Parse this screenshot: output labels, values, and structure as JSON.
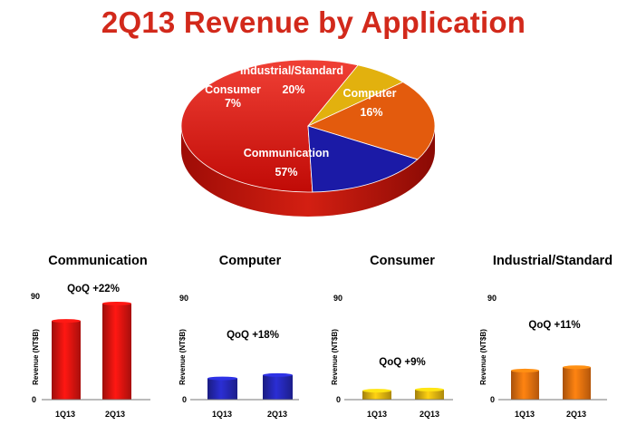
{
  "title": "2Q13 Revenue by Application",
  "chart_data": [
    {
      "type": "pie",
      "title": "2Q13 Revenue by Application",
      "categories": [
        "Communication",
        "Computer",
        "Industrial/Standard",
        "Consumer"
      ],
      "values": [
        57,
        16,
        20,
        7
      ],
      "value_labels": [
        "57%",
        "16%",
        "20%",
        "7%"
      ],
      "colors": [
        "#d8170f",
        "#1b1aa6",
        "#e35b0d",
        "#e2b10e"
      ],
      "style": "3d"
    },
    {
      "type": "bar",
      "title": "Communication",
      "annotation": "QoQ +22%",
      "categories": [
        "1Q13",
        "2Q13"
      ],
      "values": [
        68,
        83
      ],
      "ylabel": "Revenue (NT$B)",
      "ylim": [
        0,
        90
      ],
      "yticks": [
        "0",
        "90"
      ],
      "color": "#e01410"
    },
    {
      "type": "bar",
      "title": "Computer",
      "annotation": "QoQ +18%",
      "categories": [
        "1Q13",
        "2Q13"
      ],
      "values": [
        19,
        22
      ],
      "ylabel": "Revenue (NT$B)",
      "ylim": [
        0,
        90
      ],
      "yticks": [
        "0",
        "90"
      ],
      "color": "#2528b8"
    },
    {
      "type": "bar",
      "title": "Consumer",
      "annotation": "QoQ +9%",
      "categories": [
        "1Q13",
        "2Q13"
      ],
      "values": [
        8,
        9
      ],
      "ylabel": "Revenue (NT$B)",
      "ylim": [
        0,
        90
      ],
      "yticks": [
        "0",
        "90"
      ],
      "color": "#e7b710"
    },
    {
      "type": "bar",
      "title": "Industrial/Standard",
      "annotation": "QoQ +11%",
      "categories": [
        "1Q13",
        "2Q13"
      ],
      "values": [
        26,
        29
      ],
      "ylabel": "Revenue (NT$B)",
      "ylim": [
        0,
        90
      ],
      "yticks": [
        "0",
        "90"
      ],
      "color": "#f0730f"
    }
  ]
}
